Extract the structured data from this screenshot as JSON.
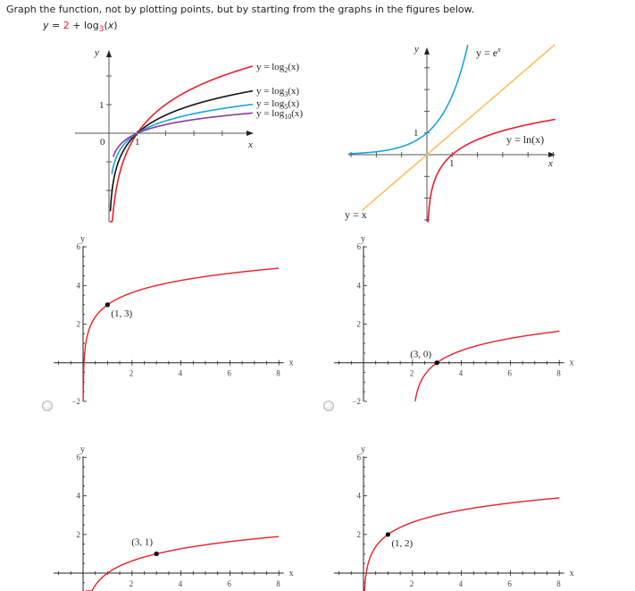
{
  "question": {
    "prompt": "Graph the function, not by plotting points, but by starting from the graphs in the figures below.",
    "equation": {
      "lhs": "y",
      "eq": " = ",
      "shift": "2",
      "op": " + log",
      "base": "3",
      "arg_open": "(",
      "arg": "x",
      "arg_close": ")"
    }
  },
  "reference_graphs": [
    {
      "axis_labels": {
        "x": "x",
        "y": "y",
        "origin": "0",
        "x_one": "1",
        "y_one": "1"
      },
      "curves": [
        {
          "pre": "y = log",
          "sub": "2",
          "post": "(x)",
          "base": 2,
          "color": "#e8202a"
        },
        {
          "pre": "y = log",
          "sub": "3",
          "post": "(x)",
          "base": 3,
          "color": "#111111"
        },
        {
          "pre": "y = log",
          "sub": "5",
          "post": "(x)",
          "base": 5,
          "color": "#1aa3dc"
        },
        {
          "pre": "y = log",
          "sub": "10",
          "post": "(x)",
          "base": 10,
          "color": "#8b3a9c"
        }
      ]
    },
    {
      "axis_labels": {
        "x": "x",
        "y": "y",
        "x_one": "1",
        "y_one": "1"
      },
      "curves": [
        {
          "pre": "y = e",
          "sup": "x",
          "kind": "exp",
          "color": "#1aa3dc"
        },
        {
          "pre": "y = ln(x)",
          "kind": "ln",
          "color": "#e8202a"
        },
        {
          "pre": "y = x",
          "kind": "identity",
          "color": "#fbbf5e"
        }
      ]
    }
  ],
  "choices": [
    {
      "selected": false,
      "curve": {
        "base": 3,
        "h": 0,
        "k": 3
      },
      "point": {
        "x": 1,
        "y": 3
      },
      "point_label": "(1, 3)"
    },
    {
      "selected": false,
      "curve": {
        "base": 3,
        "h": 2,
        "k": 0
      },
      "point": {
        "x": 3,
        "y": 0
      },
      "point_label": "(3, 0)"
    },
    {
      "selected": false,
      "curve": {
        "base": 3,
        "h": 0,
        "k": 0
      },
      "point": {
        "x": 3,
        "y": 1
      },
      "point_label": "(3, 1)"
    },
    {
      "selected": false,
      "curve": {
        "base": 3,
        "h": 0,
        "k": 2
      },
      "point": {
        "x": 1,
        "y": 2
      },
      "point_label": "(1, 2)"
    }
  ],
  "choice_axes": {
    "x_label": "x",
    "y_label": "y",
    "x_ticks": [
      "2",
      "4",
      "6",
      "8"
    ],
    "y_ticks": [
      "6",
      "4",
      "2",
      "−2"
    ],
    "xlim": [
      -1.2,
      8.2
    ],
    "ylim": [
      -2,
      6
    ],
    "curve_color": "#e8202a",
    "point_color": "#000000"
  }
}
